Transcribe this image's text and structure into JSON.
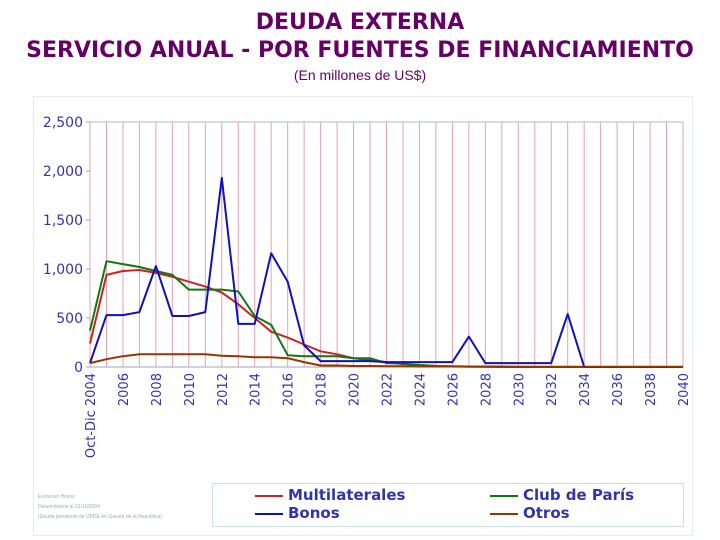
{
  "header": {
    "title": "DEUDA EXTERNA",
    "subtitle": "SERVICIO ANUAL - POR FUENTES DE FINANCIAMIENTO",
    "unit": "(En millones de US$)"
  },
  "footnote": {
    "line1": "Exclusivo Hoyos",
    "line2": "Desembolsos al 31/10/2004",
    "line3": "(Deuda pendiente de DPDE en Gaceta de la Republica)"
  },
  "chart_data": {
    "type": "line",
    "title": "DEUDA EXTERNA",
    "ylabel": "",
    "xlabel": "",
    "ylim": [
      0,
      2500
    ],
    "yticks": [
      "0",
      "500",
      "1,000",
      "1,500",
      "2,000",
      "2,500"
    ],
    "x": [
      "Oct-Dic 2004",
      "2005",
      "2006",
      "2007",
      "2008",
      "2009",
      "2010",
      "2011",
      "2012",
      "2013",
      "2014",
      "2015",
      "2016",
      "2017",
      "2018",
      "2019",
      "2020",
      "2021",
      "2022",
      "2023",
      "2024",
      "2025",
      "2026",
      "2027",
      "2028",
      "2029",
      "2030",
      "2031",
      "2032",
      "2033",
      "2034",
      "2035",
      "2036",
      "2037",
      "2038",
      "2039",
      "2040"
    ],
    "xtick_labels": [
      "Oct-Dic 2004",
      "2006",
      "2008",
      "2010",
      "2012",
      "2014",
      "2016",
      "2018",
      "2020",
      "2022",
      "2024",
      "2026",
      "2028",
      "2030",
      "2032",
      "2034",
      "2036",
      "2038",
      "2040"
    ],
    "grid": true,
    "legend_position": "bottom",
    "series": [
      {
        "name": "Multilaterales",
        "color": "#cc2222",
        "values": [
          240,
          940,
          980,
          990,
          960,
          920,
          870,
          820,
          760,
          640,
          500,
          360,
          300,
          230,
          160,
          130,
          90,
          70,
          50,
          30,
          20,
          10,
          8,
          5,
          3,
          2,
          1,
          0,
          0,
          0,
          0,
          0,
          0,
          0,
          0,
          0,
          0
        ]
      },
      {
        "name": "Club de París",
        "color": "#117711",
        "values": [
          370,
          1080,
          1050,
          1020,
          980,
          940,
          790,
          790,
          790,
          770,
          520,
          430,
          120,
          110,
          110,
          110,
          90,
          90,
          40,
          35,
          20,
          10,
          5,
          3,
          2,
          0,
          0,
          0,
          0,
          0,
          0,
          0,
          0,
          0,
          0,
          0,
          0
        ]
      },
      {
        "name": "Bonos",
        "color": "#1111bb",
        "values": [
          40,
          530,
          530,
          560,
          1030,
          520,
          520,
          560,
          1930,
          440,
          440,
          1160,
          870,
          220,
          60,
          60,
          60,
          60,
          50,
          50,
          50,
          50,
          50,
          310,
          40,
          40,
          40,
          40,
          40,
          540,
          0,
          0,
          0,
          0,
          0,
          0,
          0
        ]
      },
      {
        "name": "Otros",
        "color": "#993300",
        "values": [
          40,
          80,
          110,
          130,
          130,
          130,
          130,
          130,
          115,
          110,
          100,
          100,
          90,
          50,
          15,
          15,
          10,
          10,
          8,
          8,
          5,
          5,
          5,
          5,
          5,
          5,
          3,
          3,
          3,
          3,
          3,
          3,
          3,
          3,
          3,
          3,
          3
        ]
      }
    ]
  },
  "colors": {
    "title": "#660066",
    "grid_vertical": "#e8a0b4",
    "axis_text": "#3333aa"
  }
}
